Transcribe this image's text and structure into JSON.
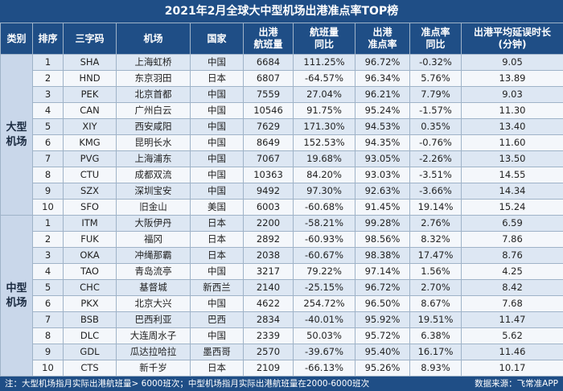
{
  "title": "2021年2月全球大中型机场出港准点率TOP榜",
  "columns": {
    "category": "类别",
    "rank": "排序",
    "code": "三字码",
    "airport": "机场",
    "country": "国家",
    "departures_1": "出港",
    "departures_2": "航班量",
    "yoy_1": "航班量",
    "yoy_2": "同比",
    "ontime_1": "出港",
    "ontime_2": "准点率",
    "ontime_yoy_1": "准点率",
    "ontime_yoy_2": "同比",
    "delay_1": "出港平均延误时长",
    "delay_2": "(分钟)"
  },
  "groups": [
    {
      "label": "大型\n机场",
      "rows": [
        {
          "rank": "1",
          "code": "SHA",
          "airport": "上海虹桥",
          "country": "中国",
          "flights": "6684",
          "yoy": "111.25%",
          "ontime": "96.72%",
          "ontime_yoy": "-0.32%",
          "delay": "9.05"
        },
        {
          "rank": "2",
          "code": "HND",
          "airport": "东京羽田",
          "country": "日本",
          "flights": "6807",
          "yoy": "-64.57%",
          "ontime": "96.34%",
          "ontime_yoy": "5.76%",
          "delay": "13.89"
        },
        {
          "rank": "3",
          "code": "PEK",
          "airport": "北京首都",
          "country": "中国",
          "flights": "7559",
          "yoy": "27.04%",
          "ontime": "96.21%",
          "ontime_yoy": "7.79%",
          "delay": "9.03"
        },
        {
          "rank": "4",
          "code": "CAN",
          "airport": "广州白云",
          "country": "中国",
          "flights": "10546",
          "yoy": "91.75%",
          "ontime": "95.24%",
          "ontime_yoy": "-1.57%",
          "delay": "11.30"
        },
        {
          "rank": "5",
          "code": "XIY",
          "airport": "西安咸阳",
          "country": "中国",
          "flights": "7629",
          "yoy": "171.30%",
          "ontime": "94.53%",
          "ontime_yoy": "0.35%",
          "delay": "13.40"
        },
        {
          "rank": "6",
          "code": "KMG",
          "airport": "昆明长水",
          "country": "中国",
          "flights": "8649",
          "yoy": "152.53%",
          "ontime": "94.35%",
          "ontime_yoy": "-0.76%",
          "delay": "11.60"
        },
        {
          "rank": "7",
          "code": "PVG",
          "airport": "上海浦东",
          "country": "中国",
          "flights": "7067",
          "yoy": "19.68%",
          "ontime": "93.05%",
          "ontime_yoy": "-2.26%",
          "delay": "13.50"
        },
        {
          "rank": "8",
          "code": "CTU",
          "airport": "成都双流",
          "country": "中国",
          "flights": "10363",
          "yoy": "84.20%",
          "ontime": "93.03%",
          "ontime_yoy": "-3.51%",
          "delay": "14.55"
        },
        {
          "rank": "9",
          "code": "SZX",
          "airport": "深圳宝安",
          "country": "中国",
          "flights": "9492",
          "yoy": "97.30%",
          "ontime": "92.63%",
          "ontime_yoy": "-3.66%",
          "delay": "14.34"
        },
        {
          "rank": "10",
          "code": "SFO",
          "airport": "旧金山",
          "country": "美国",
          "flights": "6003",
          "yoy": "-60.68%",
          "ontime": "91.45%",
          "ontime_yoy": "19.14%",
          "delay": "15.24"
        }
      ]
    },
    {
      "label": "中型\n机场",
      "rows": [
        {
          "rank": "1",
          "code": "ITM",
          "airport": "大阪伊丹",
          "country": "日本",
          "flights": "2200",
          "yoy": "-58.21%",
          "ontime": "99.28%",
          "ontime_yoy": "2.76%",
          "delay": "6.59"
        },
        {
          "rank": "2",
          "code": "FUK",
          "airport": "福冈",
          "country": "日本",
          "flights": "2892",
          "yoy": "-60.93%",
          "ontime": "98.56%",
          "ontime_yoy": "8.32%",
          "delay": "7.86"
        },
        {
          "rank": "3",
          "code": "OKA",
          "airport": "冲绳那霸",
          "country": "日本",
          "flights": "2038",
          "yoy": "-60.67%",
          "ontime": "98.38%",
          "ontime_yoy": "17.47%",
          "delay": "8.76"
        },
        {
          "rank": "4",
          "code": "TAO",
          "airport": "青岛流亭",
          "country": "中国",
          "flights": "3217",
          "yoy": "79.22%",
          "ontime": "97.14%",
          "ontime_yoy": "1.56%",
          "delay": "4.25"
        },
        {
          "rank": "5",
          "code": "CHC",
          "airport": "基督城",
          "country": "新西兰",
          "flights": "2140",
          "yoy": "-25.15%",
          "ontime": "96.72%",
          "ontime_yoy": "2.70%",
          "delay": "8.42"
        },
        {
          "rank": "6",
          "code": "PKX",
          "airport": "北京大兴",
          "country": "中国",
          "flights": "4622",
          "yoy": "254.72%",
          "ontime": "96.50%",
          "ontime_yoy": "8.67%",
          "delay": "7.68"
        },
        {
          "rank": "7",
          "code": "BSB",
          "airport": "巴西利亚",
          "country": "巴西",
          "flights": "2834",
          "yoy": "-40.01%",
          "ontime": "95.92%",
          "ontime_yoy": "19.51%",
          "delay": "11.47"
        },
        {
          "rank": "8",
          "code": "DLC",
          "airport": "大连周水子",
          "country": "中国",
          "flights": "2339",
          "yoy": "50.03%",
          "ontime": "95.72%",
          "ontime_yoy": "6.38%",
          "delay": "5.62"
        },
        {
          "rank": "9",
          "code": "GDL",
          "airport": "瓜达拉哈拉",
          "country": "墨西哥",
          "flights": "2570",
          "yoy": "-39.67%",
          "ontime": "95.40%",
          "ontime_yoy": "16.17%",
          "delay": "11.46"
        },
        {
          "rank": "10",
          "code": "CTS",
          "airport": "新千岁",
          "country": "日本",
          "flights": "2109",
          "yoy": "-66.13%",
          "ontime": "95.26%",
          "ontime_yoy": "8.93%",
          "delay": "10.17"
        }
      ]
    }
  ],
  "footer": {
    "note": "注：大型机场指月实际出港航班量> 6000班次；中型机场指月实际出港航班量在2000-6000班次",
    "source": "数据来源：飞常准APP"
  }
}
